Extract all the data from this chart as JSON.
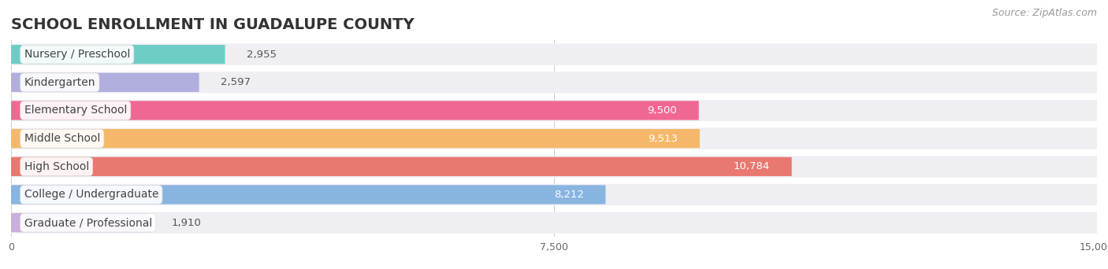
{
  "title": "SCHOOL ENROLLMENT IN GUADALUPE COUNTY",
  "source": "Source: ZipAtlas.com",
  "categories": [
    "Nursery / Preschool",
    "Kindergarten",
    "Elementary School",
    "Middle School",
    "High School",
    "College / Undergraduate",
    "Graduate / Professional"
  ],
  "values": [
    2955,
    2597,
    9500,
    9513,
    10784,
    8212,
    1910
  ],
  "bar_colors": [
    "#6dcdc5",
    "#b0aedd",
    "#f06892",
    "#f5b86a",
    "#e87870",
    "#88b4e0",
    "#ccaedd"
  ],
  "bar_bg_color": "#eeeef3",
  "label_bg_color": "#ffffff",
  "label_text_color": "#444444",
  "value_color_light": "#555555",
  "value_color_white": "#ffffff",
  "white_label_threshold": 5000,
  "xlim": [
    0,
    15000
  ],
  "xticks": [
    0,
    7500,
    15000
  ],
  "title_fontsize": 14,
  "source_fontsize": 9,
  "label_fontsize": 10,
  "value_fontsize": 9.5,
  "bg_color": "#ffffff"
}
